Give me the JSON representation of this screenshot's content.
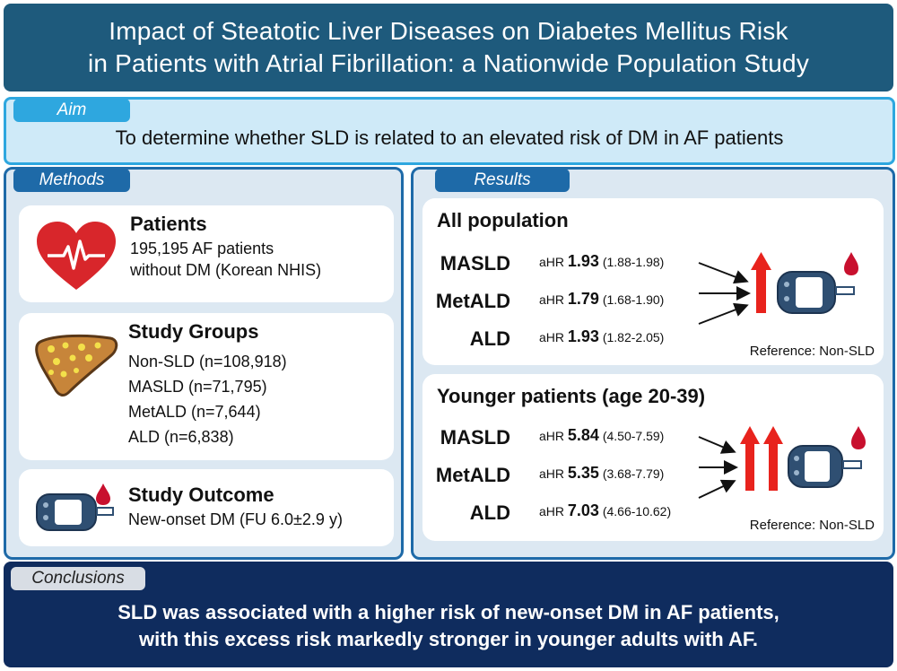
{
  "title": {
    "line1": "Impact of Steatotic Liver Diseases on Diabetes Mellitus Risk",
    "line2": "in Patients with Atrial Fibrillation: a Nationwide Population Study"
  },
  "aim": {
    "label": "Aim",
    "text": "To determine whether SLD is related to an elevated risk of DM in AF patients"
  },
  "methods": {
    "label": "Methods",
    "patients": {
      "title": "Patients",
      "lines": [
        "195,195 AF patients",
        "without DM (Korean NHIS)"
      ],
      "icon": "heart-icon"
    },
    "study_groups": {
      "title": "Study Groups",
      "lines": [
        "Non-SLD (n=108,918)",
        "MASLD (n=71,795)",
        "MetALD (n=7,644)",
        "ALD (n=6,838)"
      ],
      "icon": "liver-icon"
    },
    "study_outcome": {
      "title": "Study Outcome",
      "line": "New-onset DM (FU 6.0±2.9 y)",
      "icon": "glucose-meter-icon"
    }
  },
  "results": {
    "label": "Results",
    "all_population": {
      "heading": "All population",
      "rows": [
        {
          "group": "MASLD",
          "prefix": "aHR",
          "value": "1.93",
          "ci": "(1.88-1.98)"
        },
        {
          "group": "MetALD",
          "prefix": "aHR",
          "value": "1.79",
          "ci": "(1.68-1.90)"
        },
        {
          "group": "ALD",
          "prefix": "aHR",
          "value": "1.93",
          "ci": "(1.82-2.05)"
        }
      ],
      "reference": "Reference: Non-SLD"
    },
    "younger": {
      "heading": "Younger patients (age 20-39)",
      "rows": [
        {
          "group": "MASLD",
          "prefix": "aHR",
          "value": "5.84",
          "ci": "(4.50-7.59)"
        },
        {
          "group": "MetALD",
          "prefix": "aHR",
          "value": "5.35",
          "ci": "(3.68-7.79)"
        },
        {
          "group": "ALD",
          "prefix": "aHR",
          "value": "7.03",
          "ci": "(4.66-10.62)"
        }
      ],
      "reference": "Reference: Non-SLD"
    }
  },
  "conclusions": {
    "label": "Conclusions",
    "line1": "SLD was associated with a higher risk of new-onset DM in AF patients,",
    "line2": "with this excess risk markedly stronger in younger adults with AF."
  },
  "colors": {
    "title_bg": "#1e5a7c",
    "aim_accent": "#2ea7df",
    "panel_accent": "#1e6aa8",
    "conclusion_bg": "#0f2c5e",
    "risk_arrow": "#e8231d"
  }
}
